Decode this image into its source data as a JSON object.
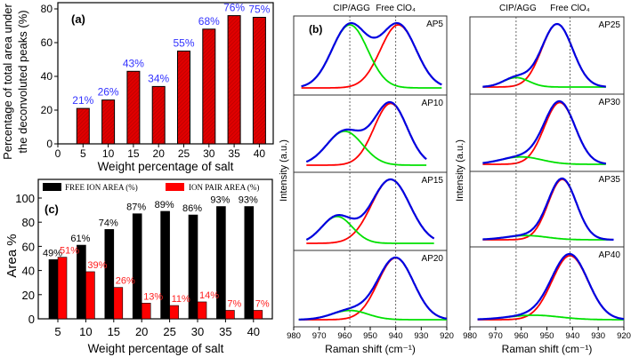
{
  "chart_data": [
    {
      "id": "a",
      "type": "bar",
      "panel_label": "(a)",
      "title": "",
      "xlabel": "Weight percentage of salt",
      "ylabel_lines": [
        "Percentage of total area under",
        "the deconvoluted peaks (%)"
      ],
      "x": [
        5,
        10,
        15,
        20,
        25,
        30,
        35,
        40
      ],
      "values": [
        21,
        26,
        43,
        34,
        55,
        68,
        76,
        75
      ],
      "data_labels": [
        "21%",
        "26%",
        "43%",
        "34%",
        "55%",
        "68%",
        "76%",
        "75%"
      ],
      "xticks": [
        "0",
        "5",
        "10",
        "15",
        "20",
        "25",
        "30",
        "35",
        "40"
      ],
      "yticks": [
        "0",
        "20",
        "40",
        "60",
        "80"
      ],
      "xlim": [
        0,
        42.8
      ],
      "ylim": [
        0,
        84
      ],
      "bar_color": "#e00000",
      "label_color": "#3333ff"
    },
    {
      "id": "c",
      "type": "bar",
      "panel_label": "(c)",
      "xlabel": "Weight percentage of salt",
      "ylabel": "Area %",
      "categories": [
        "5",
        "10",
        "15",
        "20",
        "25",
        "30",
        "35",
        "40"
      ],
      "yticks": [
        "0",
        "20",
        "40",
        "60",
        "80",
        "100"
      ],
      "ylim": [
        0,
        115
      ],
      "legend_position": "top",
      "series": [
        {
          "name": "FREE ION AREA (%)",
          "color": "#000000",
          "values": [
            49,
            61,
            74,
            87,
            89,
            86,
            93,
            93
          ],
          "data_labels": [
            "49%",
            "61%",
            "74%",
            "87%",
            "89%",
            "86%",
            "93%",
            "93%"
          ]
        },
        {
          "name": "ION PAIR AREA (%)",
          "color": "#ff0000",
          "values": [
            51,
            39,
            26,
            13,
            11,
            14,
            7,
            7
          ],
          "data_labels": [
            "51%",
            "39%",
            "26%",
            "13%",
            "11%",
            "14%",
            "7%",
            "7%"
          ]
        }
      ]
    },
    {
      "id": "b",
      "type": "line",
      "panel_label": "(b)",
      "xlabel": "Raman shift (cm⁻¹)",
      "ylabel": "Intensity (a.u.)",
      "xlim": [
        980,
        920
      ],
      "xticks": [
        "980",
        "970",
        "960",
        "950",
        "940",
        "930",
        "920"
      ],
      "reference_labels": [
        "CIP/AGG",
        "Free ClO₄"
      ],
      "colors": {
        "sum": "#0000e0",
        "ion_pair": "#00e000",
        "free": "#ff0000"
      },
      "columns": [
        {
          "reference_lines": [
            958,
            940
          ],
          "spectra": [
            {
              "name": "AP5",
              "range": [
                977,
                922
              ],
              "pair": [
                958,
                1.0,
                7
              ],
              "free": [
                939,
                1.0,
                7
              ]
            },
            {
              "name": "AP10",
              "range": [
                975,
                928
              ],
              "pair": [
                960,
                0.55,
                7
              ],
              "free": [
                942,
                1.0,
                6.5
              ]
            },
            {
              "name": "AP15",
              "range": [
                975,
                925
              ],
              "pair": [
                963,
                0.42,
                6
              ],
              "free": [
                942,
                1.0,
                7.5
              ]
            },
            {
              "name": "AP20",
              "range": [
                978,
                920
              ],
              "pair": [
                958,
                0.15,
                7
              ],
              "free": [
                940,
                1.0,
                7
              ]
            }
          ]
        },
        {
          "reference_lines": [
            962,
            941
          ],
          "spectra": [
            {
              "name": "AP25",
              "range": [
                975,
                927
              ],
              "pair": [
                962,
                0.15,
                5
              ],
              "free": [
                946,
                1.0,
                6
              ]
            },
            {
              "name": "AP30",
              "range": [
                975,
                927
              ],
              "pair": [
                960,
                0.12,
                8
              ],
              "free": [
                945,
                1.0,
                6
              ]
            },
            {
              "name": "AP35",
              "range": [
                975,
                924
              ],
              "pair": [
                958,
                0.07,
                8
              ],
              "free": [
                944,
                1.0,
                5.5
              ]
            },
            {
              "name": "AP40",
              "range": [
                977,
                920
              ],
              "pair": [
                955,
                0.07,
                10
              ],
              "free": [
                941,
                1.0,
                7
              ]
            }
          ]
        }
      ]
    }
  ]
}
